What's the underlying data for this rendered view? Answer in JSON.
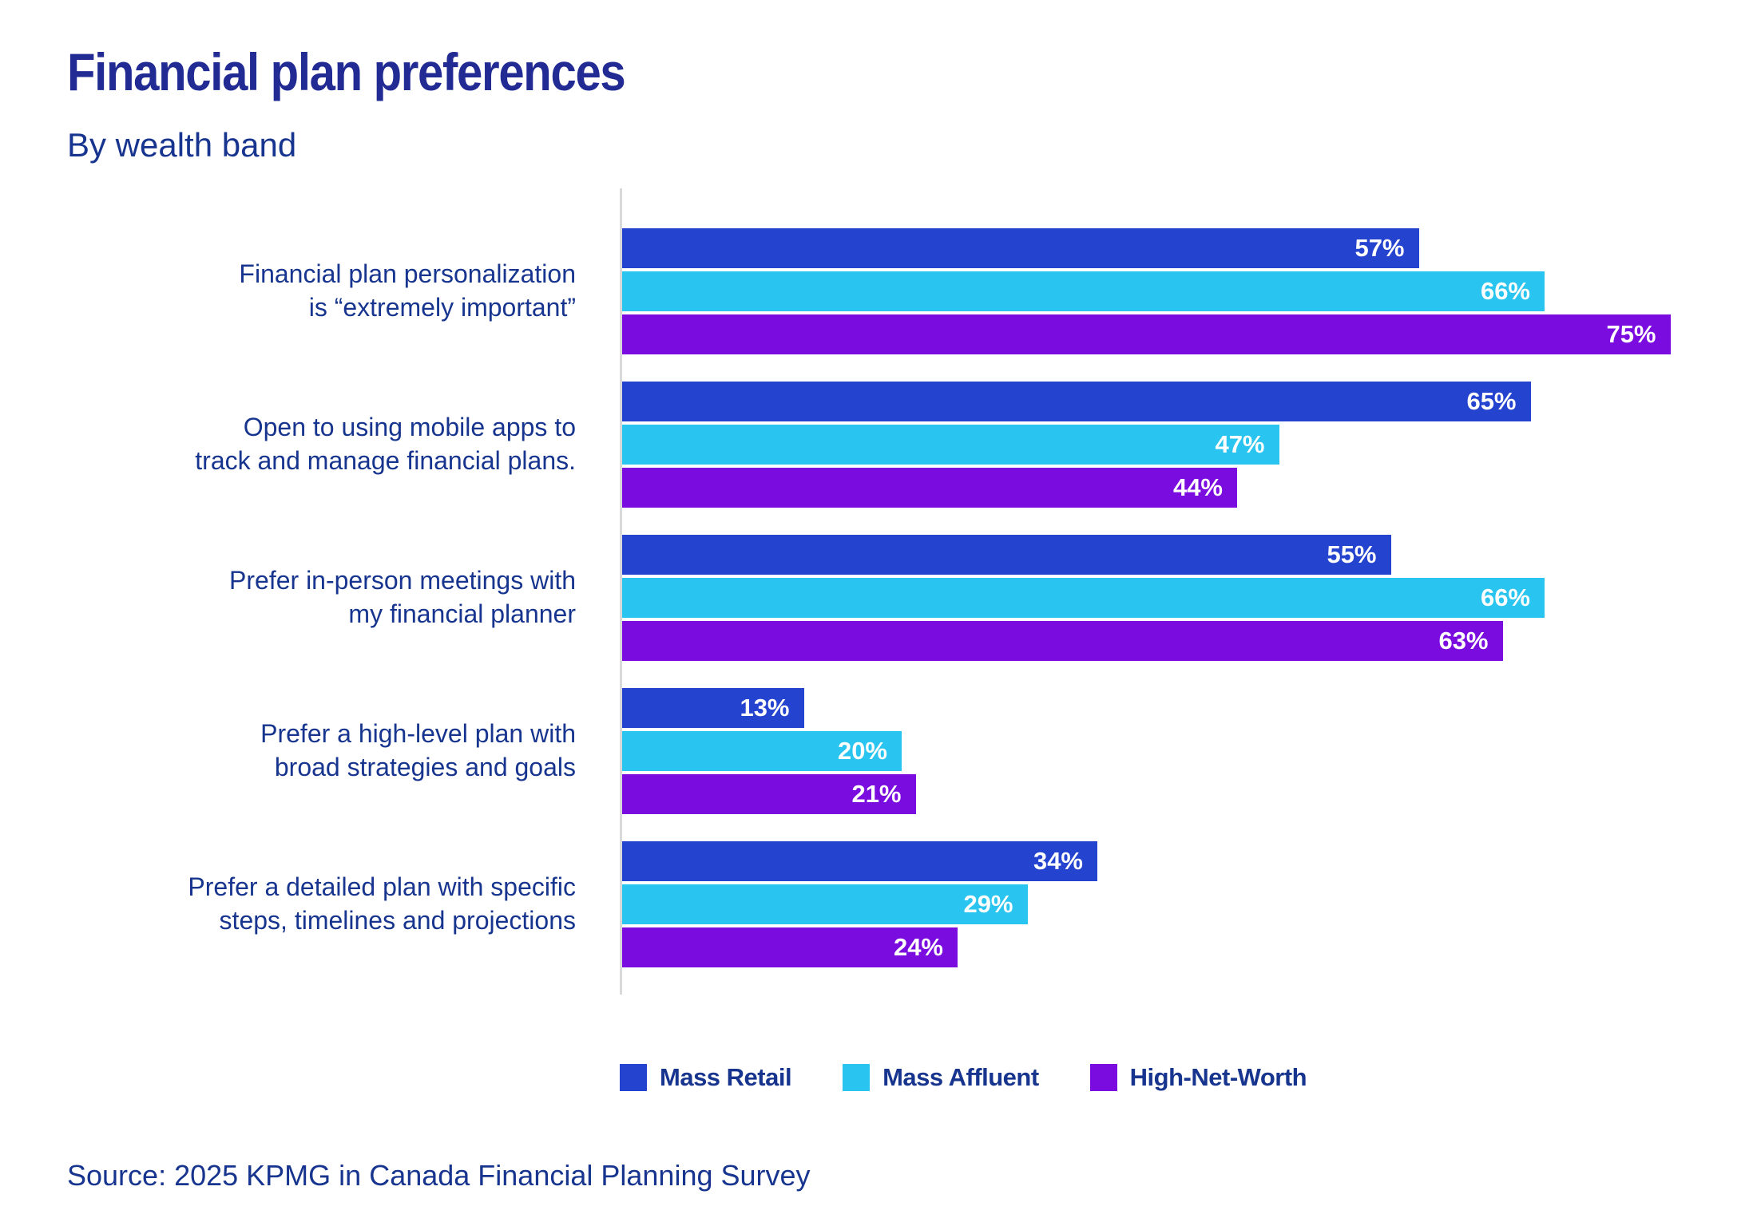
{
  "header": {
    "title": "Financial plan preferences",
    "subtitle": "By wealth band"
  },
  "colors": {
    "title_navy": "#212b93",
    "text_navy": "#17358f",
    "axis_gray": "#d9d9d9",
    "value_label": "#ffffff"
  },
  "chart_data": {
    "type": "bar",
    "orientation": "horizontal",
    "title": "Financial plan preferences",
    "subtitle": "By wealth band",
    "categories": [
      "Financial plan personalization\nis “extremely important”",
      "Open to using mobile apps to\ntrack and manage financial plans.",
      "Prefer in-person meetings with\nmy financial planner",
      "Prefer a high-level plan with\nbroad strategies and goals",
      "Prefer a detailed plan with specific\nsteps, timelines and projections"
    ],
    "series": [
      {
        "name": "Mass Retail",
        "color": "#2443cf",
        "values": [
          57,
          65,
          55,
          13,
          34
        ]
      },
      {
        "name": "Mass Affluent",
        "color": "#29c4ef",
        "values": [
          66,
          47,
          66,
          20,
          29
        ]
      },
      {
        "name": "High-Net-Worth",
        "color": "#7a0ce0",
        "values": [
          75,
          44,
          63,
          21,
          24
        ]
      }
    ],
    "value_suffix": "%",
    "xlim": [
      0,
      80
    ],
    "grid": false,
    "legend_position": "bottom"
  },
  "footer": {
    "source": "Source: 2025 KPMG in Canada Financial Planning Survey"
  }
}
